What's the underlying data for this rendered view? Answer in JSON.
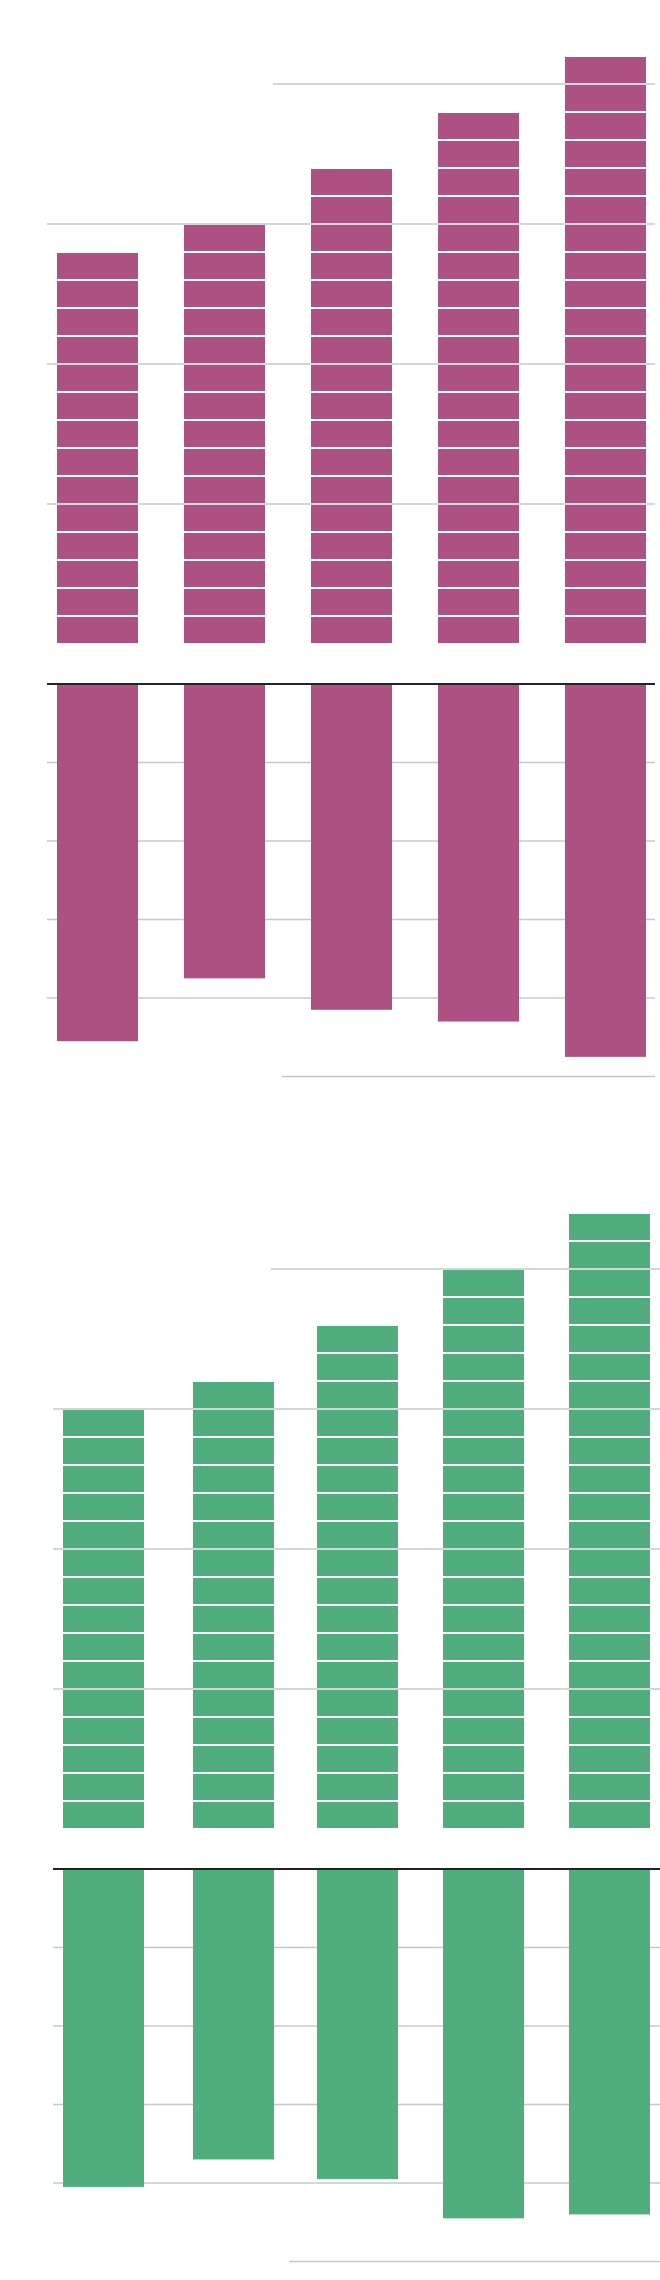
{
  "chart_data": [
    {
      "type": "bar",
      "color": "#ad5082",
      "categories": [
        "",
        "",
        "",
        "",
        ""
      ],
      "series": [
        {
          "values": [
            14,
            15,
            17,
            19,
            21
          ],
          "style": "stacked-units"
        },
        {
          "values": [
            -4.55,
            -3.75,
            -4.15,
            -4.3,
            -4.75
          ],
          "style": "solid"
        }
      ],
      "ylim": [
        -5,
        22
      ],
      "grid": true,
      "gridlines_upper": [
        5,
        10,
        15,
        20
      ],
      "gridlines_lower": [
        -1,
        -2,
        -3,
        -4,
        -5
      ],
      "legend": "none"
    },
    {
      "type": "bar",
      "color": "#50ae7e",
      "categories": [
        "",
        "",
        "",
        "",
        ""
      ],
      "series": [
        {
          "values": [
            15,
            16,
            18,
            20,
            22
          ],
          "style": "stacked-units"
        },
        {
          "values": [
            -4.05,
            -3.7,
            -3.95,
            -4.45,
            -4.4
          ],
          "style": "solid"
        }
      ],
      "ylim": [
        -5,
        22
      ],
      "grid": true,
      "gridlines_upper": [
        5,
        10,
        15,
        20
      ],
      "gridlines_lower": [
        -1,
        -2,
        -3,
        -4,
        -5
      ],
      "legend": "none"
    }
  ]
}
